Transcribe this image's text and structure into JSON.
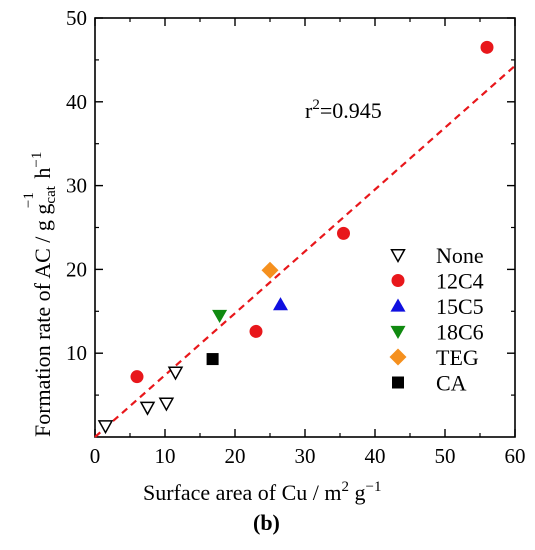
{
  "chart_data": {
    "type": "scatter",
    "panel_label": "(b)",
    "xlabel": {
      "main": "Surface area of Cu / m",
      "sup": "2",
      "mid": " g",
      "sup2": "−1"
    },
    "ylabel": {
      "main": "Formation rate of AC / g g",
      "sub": "cat",
      "sup": "−1",
      "end": " h",
      "sup2": "−1"
    },
    "xlim": [
      0,
      60
    ],
    "ylim": [
      0,
      50
    ],
    "x_ticks": [
      0,
      10,
      20,
      30,
      40,
      50,
      60
    ],
    "y_ticks": [
      10,
      20,
      30,
      40,
      50
    ],
    "x_tick_labels": [
      "0",
      "10",
      "20",
      "30",
      "40",
      "50",
      "60"
    ],
    "y_tick_labels": [
      "10",
      "20",
      "30",
      "40",
      "50"
    ],
    "annotation": {
      "pre": "r",
      "sup": "2",
      "post": "=0.945"
    },
    "fit_line": {
      "x": [
        0,
        60
      ],
      "y": [
        0,
        44.3
      ],
      "color": "#e8171b",
      "style": "dashed"
    },
    "legend_position": "lower-right",
    "series": [
      {
        "name": "None",
        "marker": "triangle-down-open",
        "color": "#000000",
        "points": [
          [
            1.5,
            1.3
          ],
          [
            7.5,
            3.5
          ],
          [
            10.2,
            4.0
          ],
          [
            11.5,
            7.7
          ]
        ]
      },
      {
        "name": "12C4",
        "marker": "circle",
        "color": "#e8171b",
        "points": [
          [
            6.0,
            7.2
          ],
          [
            23.0,
            12.6
          ],
          [
            35.5,
            24.3
          ],
          [
            56.0,
            46.5
          ]
        ]
      },
      {
        "name": "15C5",
        "marker": "triangle-up",
        "color": "#1010e0",
        "points": [
          [
            26.5,
            15.8
          ]
        ]
      },
      {
        "name": "18C6",
        "marker": "triangle-down",
        "color": "#108a10",
        "points": [
          [
            17.8,
            14.5
          ]
        ]
      },
      {
        "name": "TEG",
        "marker": "diamond",
        "color": "#f5901e",
        "points": [
          [
            25.0,
            19.9
          ]
        ]
      },
      {
        "name": "CA",
        "marker": "square",
        "color": "#000000",
        "points": [
          [
            16.8,
            9.3
          ]
        ]
      }
    ]
  }
}
